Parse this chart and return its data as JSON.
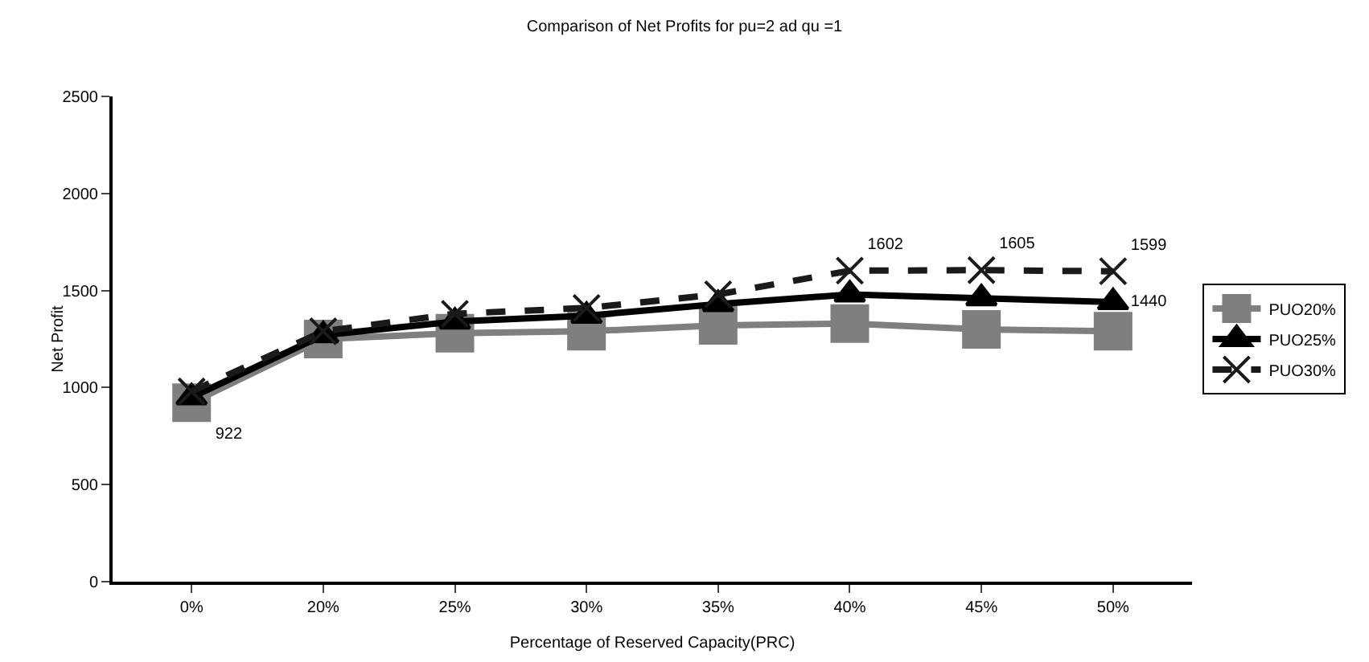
{
  "chart_data": {
    "type": "line",
    "title": "Comparison of Net Profits for pu=2 ad qu =1",
    "xlabel": "Percentage of Reserved Capacity(PRC)",
    "ylabel": "Net Profit",
    "categories": [
      "0%",
      "20%",
      "25%",
      "30%",
      "35%",
      "40%",
      "45%",
      "50%"
    ],
    "series": [
      {
        "name": "PUO20%",
        "color": "#7f7f7f",
        "marker": "square",
        "line_style": "solid",
        "values": [
          922,
          1250,
          1280,
          1290,
          1320,
          1330,
          1300,
          1290
        ],
        "value_labels": [
          "922",
          null,
          null,
          null,
          null,
          null,
          null,
          null
        ]
      },
      {
        "name": "PUO25%",
        "color": "#000000",
        "marker": "triangle",
        "line_style": "solid",
        "values": [
          950,
          1270,
          1340,
          1370,
          1430,
          1480,
          1460,
          1440
        ],
        "value_labels": [
          null,
          null,
          null,
          null,
          null,
          null,
          null,
          "1440"
        ]
      },
      {
        "name": "PUO30%",
        "color": "#1a1a1a",
        "marker": "cross",
        "line_style": "dashed",
        "values": [
          980,
          1290,
          1380,
          1410,
          1480,
          1602,
          1605,
          1599
        ],
        "value_labels": [
          null,
          null,
          null,
          null,
          null,
          "1602",
          "1605",
          "1599"
        ]
      }
    ],
    "ylim": [
      0,
      2500
    ],
    "yticks": [
      0,
      500,
      1000,
      1500,
      2000,
      2500
    ],
    "grid": false,
    "legend": "right"
  }
}
